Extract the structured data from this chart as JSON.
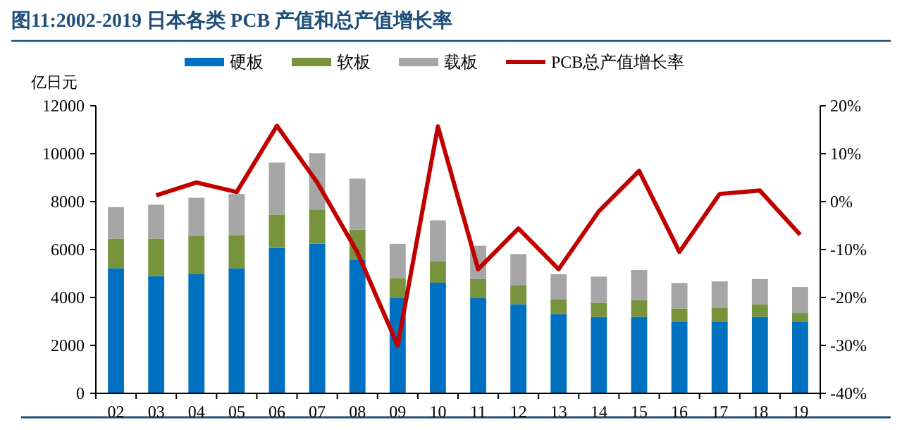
{
  "chart_data": {
    "type": "bar",
    "stacked": true,
    "title": "图11:2002-2019 日本各类 PCB 产值和总产值增长率",
    "ylabel": "亿日元",
    "categories": [
      "02",
      "03",
      "04",
      "05",
      "06",
      "07",
      "08",
      "09",
      "10",
      "11",
      "12",
      "13",
      "14",
      "15",
      "16",
      "17",
      "18",
      "19"
    ],
    "series": [
      {
        "name": "硬板",
        "color": "#0070c0",
        "values": [
          5220,
          4890,
          4970,
          5220,
          6070,
          6240,
          5580,
          3990,
          4620,
          3970,
          3720,
          3310,
          3190,
          3190,
          2970,
          2990,
          3190,
          2990
        ]
      },
      {
        "name": "软板",
        "color": "#77933c",
        "values": [
          1240,
          1570,
          1610,
          1380,
          1390,
          1430,
          1250,
          820,
          900,
          800,
          780,
          620,
          590,
          700,
          570,
          590,
          530,
          360
        ]
      },
      {
        "name": "载板",
        "color": "#a6a6a6",
        "values": [
          1310,
          1410,
          1580,
          1720,
          2170,
          2350,
          2130,
          1430,
          1700,
          1390,
          1310,
          1040,
          1090,
          1260,
          1060,
          1090,
          1050,
          1090
        ]
      },
      {
        "name": "PCB总产值增长率",
        "type": "line",
        "axis": "y2",
        "color": "#c00000",
        "values": [
          null,
          1.3,
          4.0,
          2.0,
          15.8,
          4.0,
          -10.6,
          -30,
          15.7,
          -14.1,
          -5.6,
          -14.1,
          -2.0,
          6.4,
          -10.5,
          1.6,
          2.3,
          -6.9
        ]
      }
    ],
    "ylim": [
      0,
      12000
    ],
    "yticks": [
      0,
      2000,
      4000,
      6000,
      8000,
      10000,
      12000
    ],
    "y2lim": [
      -40,
      20
    ],
    "y2ticks": [
      {
        "value": -40,
        "label": "-40%"
      },
      {
        "value": -30,
        "label": "-30%"
      },
      {
        "value": -20,
        "label": "-20%"
      },
      {
        "value": -10,
        "label": "-10%"
      },
      {
        "value": 0,
        "label": "0%"
      },
      {
        "value": 10,
        "label": "10%"
      },
      {
        "value": 20,
        "label": "20%"
      }
    ],
    "grid": false,
    "legend": "top"
  }
}
